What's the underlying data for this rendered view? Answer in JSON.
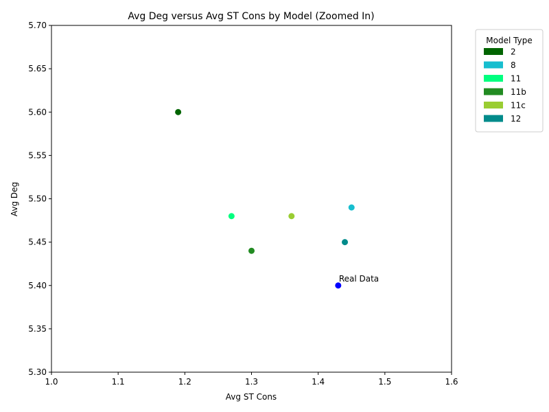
{
  "chart_data": {
    "type": "scatter",
    "title": "Avg Deg versus Avg ST Cons by Model (Zoomed In)",
    "xlabel": "Avg ST Cons",
    "ylabel": "Avg Deg",
    "xlim": [
      1.0,
      1.6
    ],
    "ylim": [
      5.3,
      5.7
    ],
    "xticks": [
      "1.0",
      "1.1",
      "1.2",
      "1.3",
      "1.4",
      "1.5",
      "1.6"
    ],
    "yticks": [
      "5.30",
      "5.35",
      "5.40",
      "5.45",
      "5.50",
      "5.55",
      "5.60",
      "5.65",
      "5.70"
    ],
    "grid": false,
    "legend": {
      "title": "Model Type",
      "placement": "outside-top-right"
    },
    "series": [
      {
        "name": "2",
        "color": "#006400",
        "points": [
          {
            "x": 1.19,
            "y": 5.6
          }
        ]
      },
      {
        "name": "8",
        "color": "#17becf",
        "points": [
          {
            "x": 1.45,
            "y": 5.49
          }
        ]
      },
      {
        "name": "11",
        "color": "#00ff7f",
        "points": [
          {
            "x": 1.27,
            "y": 5.48
          }
        ]
      },
      {
        "name": "11b",
        "color": "#228b22",
        "points": [
          {
            "x": 1.3,
            "y": 5.44
          }
        ]
      },
      {
        "name": "11c",
        "color": "#9acd32",
        "points": [
          {
            "x": 1.36,
            "y": 5.48
          }
        ]
      },
      {
        "name": "12",
        "color": "#008b8b",
        "points": [
          {
            "x": 1.44,
            "y": 5.45
          }
        ]
      }
    ],
    "reference_point": {
      "label": "Real Data",
      "color": "#0000ff",
      "x": 1.43,
      "y": 5.4
    }
  }
}
